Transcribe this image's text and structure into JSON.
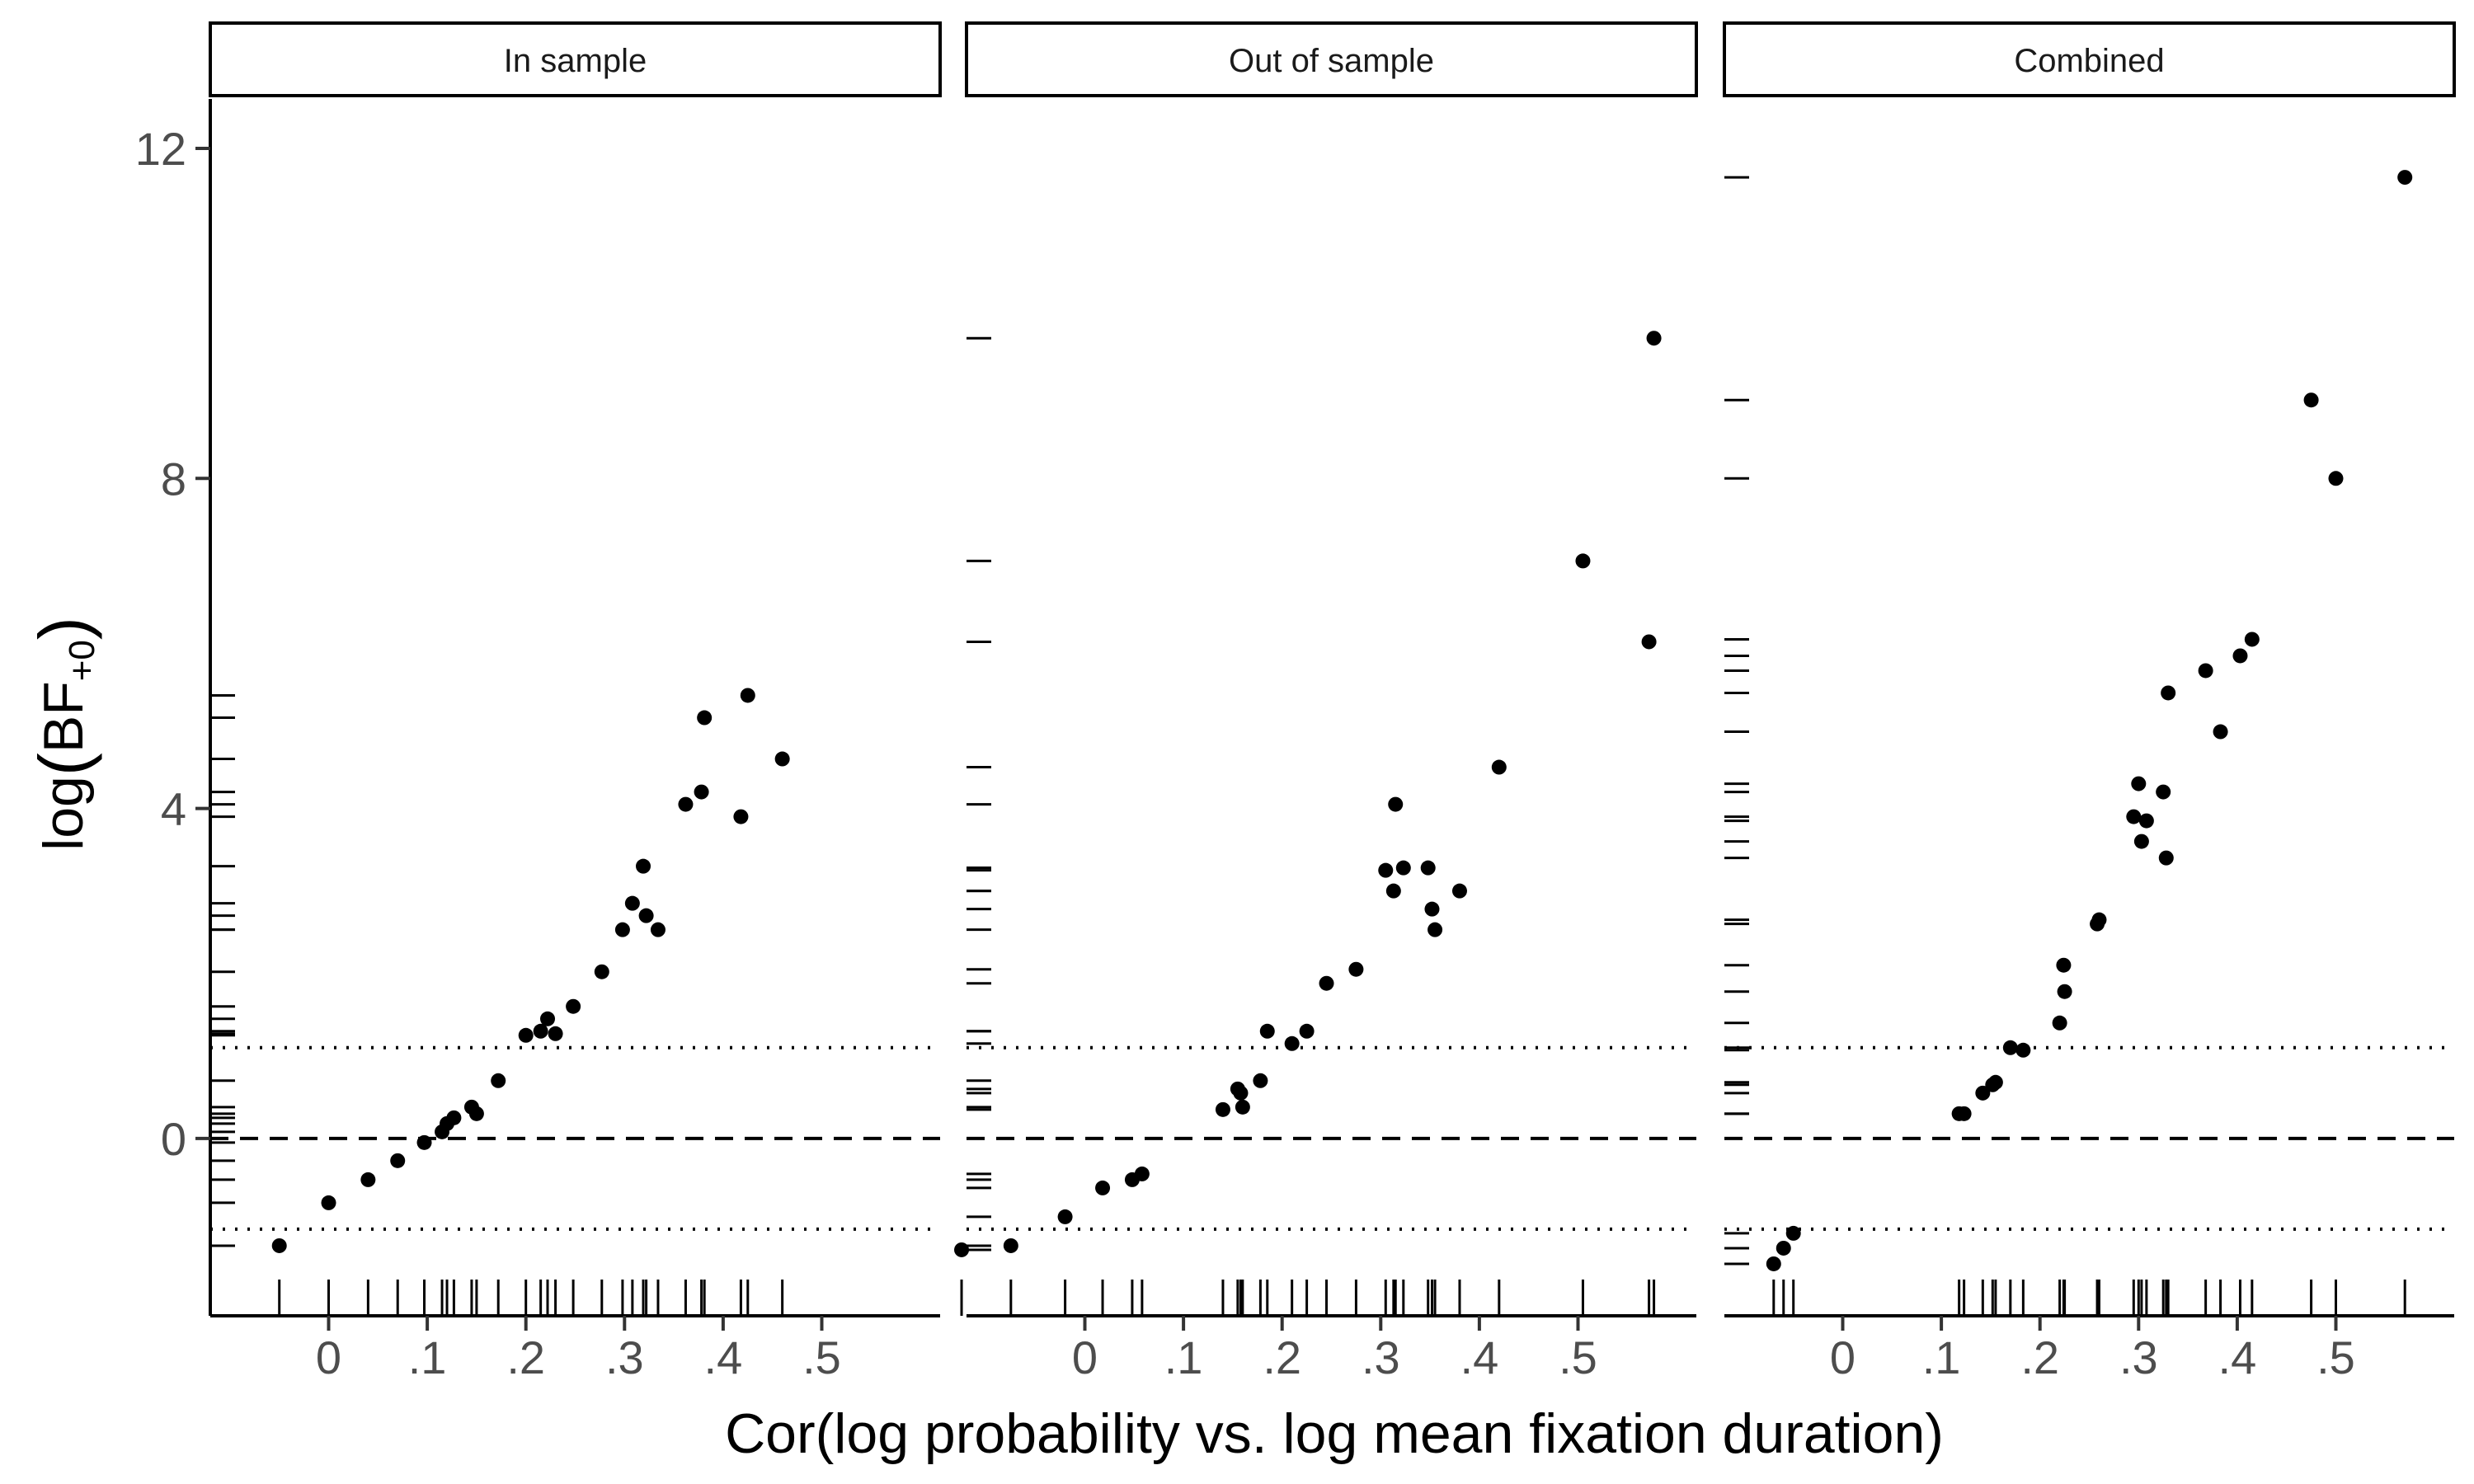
{
  "chart_data": {
    "type": "scatter",
    "xlabel": "Cor(log probability vs. log mean fixation duration)",
    "ylabel": "log(BF+0)",
    "ylabel_parts": {
      "prefix": "log",
      "main": "BF",
      "subscript": "+0"
    },
    "xlim": [
      -0.12,
      0.62
    ],
    "ylim": [
      -2.15,
      12.6
    ],
    "x_ticks": [
      0,
      0.1,
      0.2,
      0.3,
      0.4,
      0.5
    ],
    "x_tick_labels": [
      "0",
      ".1",
      ".2",
      ".3",
      ".4",
      ".5"
    ],
    "y_ticks": [
      0,
      4,
      8,
      12
    ],
    "y_tick_labels": [
      "0",
      "4",
      "8",
      "12"
    ],
    "grid": false,
    "reference_lines": [
      {
        "y": 0,
        "style": "dashed"
      },
      {
        "y": 1.1,
        "style": "dotted"
      },
      {
        "y": -1.1,
        "style": "dotted"
      }
    ],
    "rug": {
      "x": true,
      "y": true
    },
    "panels": [
      {
        "label": "In sample",
        "points": [
          [
            -0.05,
            -1.3
          ],
          [
            0,
            -0.78
          ],
          [
            0.04,
            -0.5
          ],
          [
            0.07,
            -0.27
          ],
          [
            0.097,
            -0.05
          ],
          [
            0.115,
            0.08
          ],
          [
            0.12,
            0.18
          ],
          [
            0.127,
            0.25
          ],
          [
            0.145,
            0.38
          ],
          [
            0.15,
            0.3
          ],
          [
            0.172,
            0.7
          ],
          [
            0.2,
            1.25
          ],
          [
            0.215,
            1.3
          ],
          [
            0.222,
            1.45
          ],
          [
            0.23,
            1.27
          ],
          [
            0.248,
            1.6
          ],
          [
            0.277,
            2.02
          ],
          [
            0.298,
            2.53
          ],
          [
            0.308,
            2.85
          ],
          [
            0.319,
            3.3
          ],
          [
            0.322,
            2.7
          ],
          [
            0.334,
            2.53
          ],
          [
            0.362,
            4.05
          ],
          [
            0.378,
            4.2
          ],
          [
            0.381,
            5.1
          ],
          [
            0.418,
            3.9
          ],
          [
            0.425,
            5.37
          ],
          [
            0.46,
            4.6
          ]
        ]
      },
      {
        "label": "Out of sample",
        "points": [
          [
            -0.125,
            -1.35
          ],
          [
            -0.075,
            -1.3
          ],
          [
            -0.02,
            -0.95
          ],
          [
            0.018,
            -0.6
          ],
          [
            0.048,
            -0.5
          ],
          [
            0.058,
            -0.43
          ],
          [
            0.14,
            0.35
          ],
          [
            0.155,
            0.6
          ],
          [
            0.16,
            0.38
          ],
          [
            0.158,
            0.55
          ],
          [
            0.178,
            0.7
          ],
          [
            0.185,
            1.3
          ],
          [
            0.21,
            1.15
          ],
          [
            0.225,
            1.3
          ],
          [
            0.245,
            1.88
          ],
          [
            0.275,
            2.05
          ],
          [
            0.305,
            3.25
          ],
          [
            0.313,
            3.0
          ],
          [
            0.315,
            4.05
          ],
          [
            0.323,
            3.28
          ],
          [
            0.348,
            3.28
          ],
          [
            0.352,
            2.78
          ],
          [
            0.355,
            2.53
          ],
          [
            0.38,
            3.0
          ],
          [
            0.42,
            4.5
          ],
          [
            0.505,
            7.0
          ],
          [
            0.572,
            6.02
          ],
          [
            0.577,
            9.7
          ]
        ]
      },
      {
        "label": "Combined",
        "points": [
          [
            -0.07,
            -1.52
          ],
          [
            -0.06,
            -1.33
          ],
          [
            -0.05,
            -1.15
          ],
          [
            0.118,
            0.3
          ],
          [
            0.123,
            0.3
          ],
          [
            0.142,
            0.55
          ],
          [
            0.152,
            0.65
          ],
          [
            0.155,
            0.68
          ],
          [
            0.17,
            1.1
          ],
          [
            0.183,
            1.07
          ],
          [
            0.22,
            1.4
          ],
          [
            0.225,
            1.78
          ],
          [
            0.224,
            2.1
          ],
          [
            0.258,
            2.6
          ],
          [
            0.26,
            2.65
          ],
          [
            0.295,
            3.9
          ],
          [
            0.3,
            4.3
          ],
          [
            0.303,
            3.6
          ],
          [
            0.308,
            3.85
          ],
          [
            0.325,
            4.2
          ],
          [
            0.328,
            3.4
          ],
          [
            0.33,
            5.4
          ],
          [
            0.368,
            5.67
          ],
          [
            0.383,
            4.93
          ],
          [
            0.403,
            5.85
          ],
          [
            0.415,
            6.05
          ],
          [
            0.475,
            8.95
          ],
          [
            0.5,
            8.0
          ],
          [
            0.57,
            11.65
          ]
        ]
      }
    ]
  }
}
